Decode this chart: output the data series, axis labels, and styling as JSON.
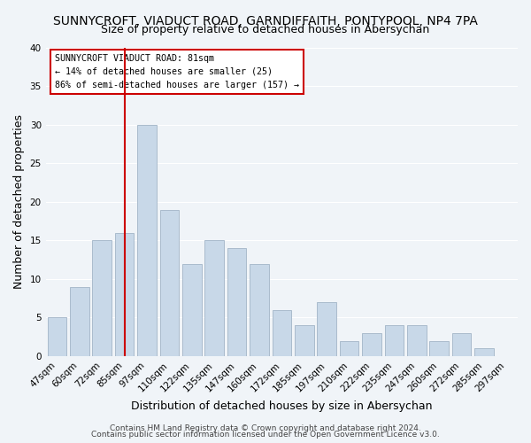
{
  "title": "SUNNYCROFT, VIADUCT ROAD, GARNDIFFAITH, PONTYPOOL, NP4 7PA",
  "subtitle": "Size of property relative to detached houses in Abersychan",
  "xlabel": "Distribution of detached houses by size in Abersychan",
  "ylabel": "Number of detached properties",
  "footer_line1": "Contains HM Land Registry data © Crown copyright and database right 2024.",
  "footer_line2": "Contains public sector information licensed under the Open Government Licence v3.0.",
  "bar_labels": [
    "47sqm",
    "60sqm",
    "72sqm",
    "85sqm",
    "97sqm",
    "110sqm",
    "122sqm",
    "135sqm",
    "147sqm",
    "160sqm",
    "172sqm",
    "185sqm",
    "197sqm",
    "210sqm",
    "222sqm",
    "235sqm",
    "247sqm",
    "260sqm",
    "272sqm",
    "285sqm",
    "297sqm"
  ],
  "bar_values": [
    5,
    9,
    15,
    16,
    30,
    19,
    12,
    15,
    14,
    12,
    6,
    4,
    7,
    2,
    3,
    4,
    4,
    2,
    3,
    1,
    0
  ],
  "bar_color": "#c8d8e8",
  "bar_edge_color": "#aabbcc",
  "ylim": [
    0,
    40
  ],
  "yticks": [
    0,
    5,
    10,
    15,
    20,
    25,
    30,
    35,
    40
  ],
  "vline_x": 3,
  "vline_color": "#cc0000",
  "annotation_title": "SUNNYCROFT VIADUCT ROAD: 81sqm",
  "annotation_line2": "← 14% of detached houses are smaller (25)",
  "annotation_line3": "86% of semi-detached houses are larger (157) →",
  "background_color": "#f0f4f8",
  "plot_background": "#f0f4f8",
  "grid_color": "#ffffff",
  "title_fontsize": 10,
  "subtitle_fontsize": 9,
  "axis_label_fontsize": 9,
  "tick_fontsize": 7.5,
  "footer_fontsize": 6.5
}
